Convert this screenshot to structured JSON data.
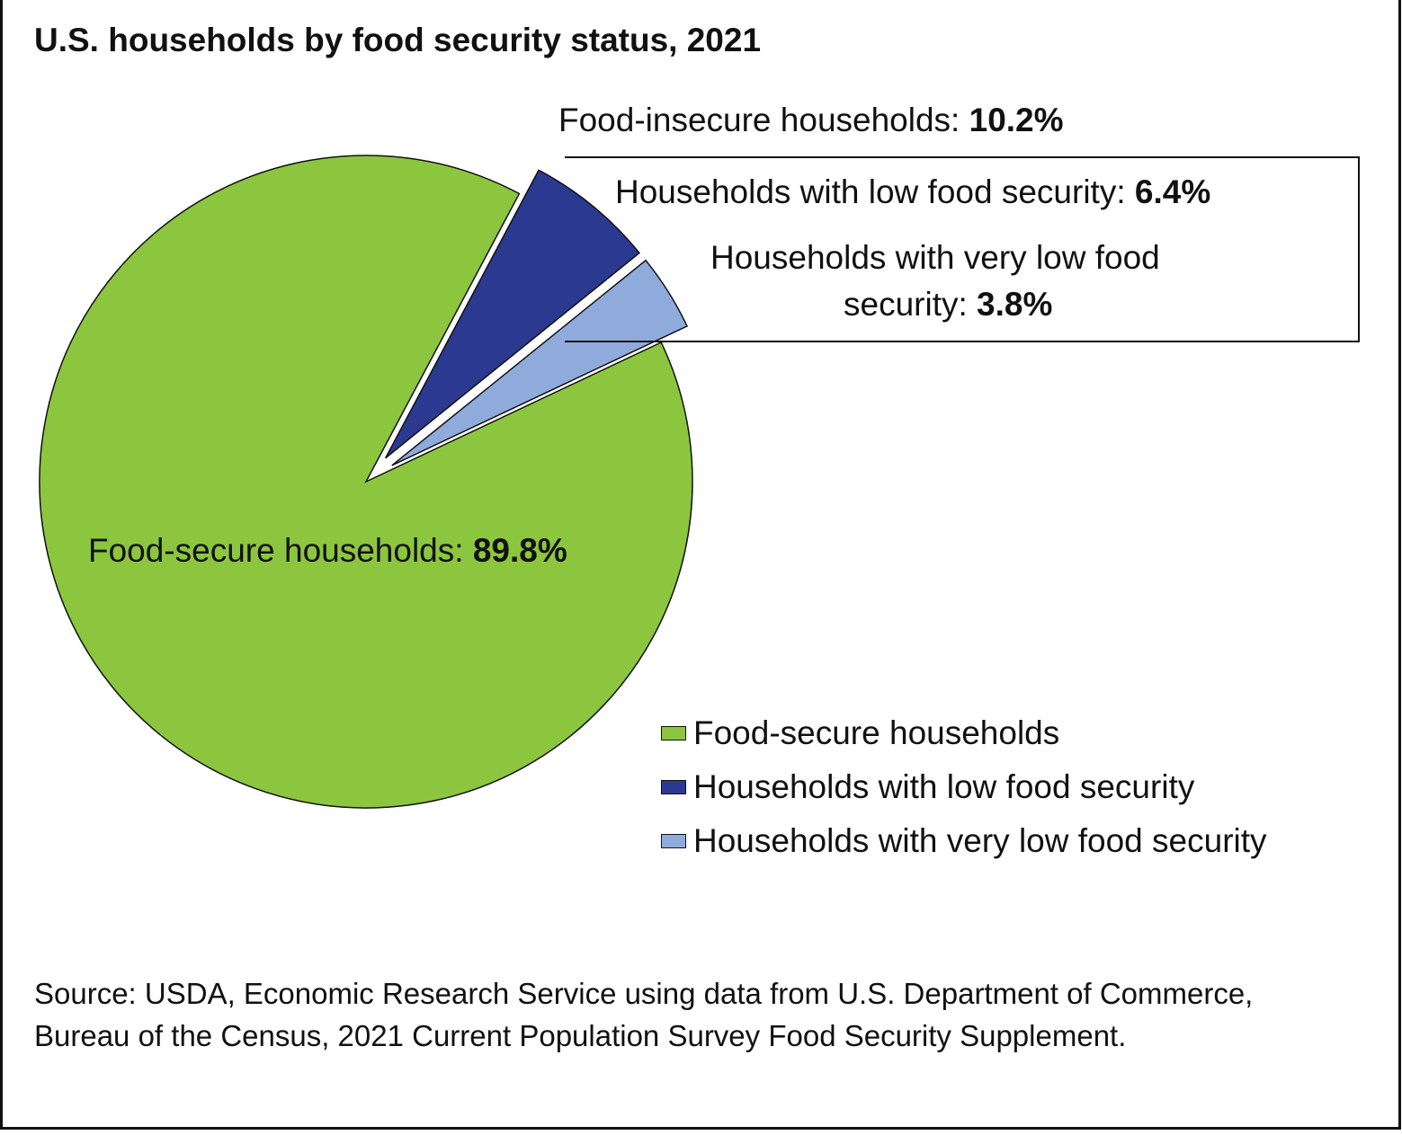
{
  "title": "U.S. households by food security status, 2021",
  "chart_data": {
    "type": "pie",
    "title": "U.S. households by food security status, 2021",
    "slices": [
      {
        "name": "Food-secure households",
        "value": 89.8,
        "color": "#8cc63f",
        "exploded": false
      },
      {
        "name": "Households with low food security",
        "value": 6.4,
        "color": "#2b3990",
        "exploded": true
      },
      {
        "name": "Households with very low food security",
        "value": 3.8,
        "color": "#8fabdb",
        "exploded": true
      }
    ],
    "group_label": {
      "text": "Food-insecure households: ",
      "value": "10.2%"
    },
    "data_labels": [
      {
        "text": "Food-secure households: ",
        "value": "89.8%"
      },
      {
        "text": "Households with low food security: ",
        "value": "6.4%"
      },
      {
        "text_line1": "Households with very low food",
        "text_line2": "security: ",
        "value": "3.8%"
      }
    ],
    "legend": {
      "placement": "bottom-right",
      "entries": [
        "Food-secure households",
        "Households with low food security",
        "Households with very low food security"
      ]
    }
  },
  "source": "Source: USDA, Economic Research Service using data from U.S. Department of Commerce, Bureau of the Census, 2021 Current Population Survey Food Security Supplement."
}
